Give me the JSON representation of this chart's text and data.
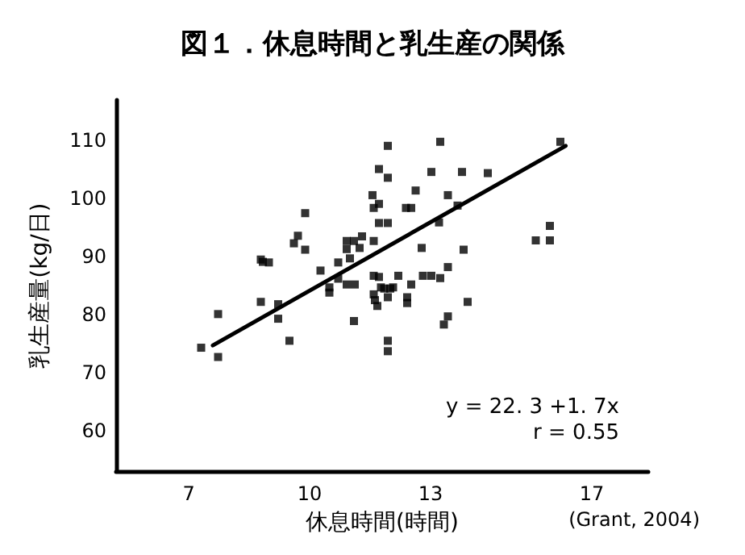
{
  "chart_data": {
    "type": "scatter",
    "title": "図１．休息時間と乳生産の関係",
    "xlabel": "休息時間(時間)",
    "ylabel": "乳生産量(kg/日)",
    "annotations": [
      "y = 22. 3 +1. 7x",
      "r = 0.55",
      "(Grant, 2004)"
    ],
    "xlim": [
      5.2,
      18.4
    ],
    "ylim": [
      53,
      117
    ],
    "xticks": [
      7,
      10,
      13,
      17
    ],
    "yticks": [
      60,
      70,
      80,
      90,
      100,
      110
    ],
    "grid": false,
    "marker": "square",
    "series": [
      {
        "color": "#000000",
        "x": [
          7.31,
          7.73,
          7.73,
          8.79,
          8.84,
          8.99,
          8.79,
          9.22,
          9.22,
          9.5,
          9.61,
          9.71,
          9.89,
          9.89,
          10.27,
          10.49,
          10.49,
          10.71,
          10.71,
          10.92,
          10.92,
          10.92,
          11.0,
          11.1,
          11.12,
          11.1,
          11.24,
          11.3,
          11.59,
          11.59,
          11.56,
          11.59,
          11.72,
          11.72,
          11.72,
          11.94,
          11.94,
          11.94,
          11.59,
          11.62,
          11.68,
          11.77,
          11.85,
          12.0,
          11.94,
          12.07,
          12.2,
          12.42,
          12.42,
          12.52,
          11.94,
          11.94,
          11.72,
          12.39,
          12.52,
          12.63,
          12.78,
          12.81,
          13.02,
          13.02,
          13.21,
          13.24,
          13.24,
          13.43,
          13.43,
          13.33,
          13.43,
          13.67,
          13.78,
          13.82,
          13.92,
          14.42,
          15.61,
          15.96,
          15.96,
          16.22
        ],
        "values": [
          74.3,
          80.1,
          72.7,
          89.5,
          89.1,
          89.0,
          82.2,
          81.8,
          79.3,
          75.5,
          92.3,
          93.6,
          97.5,
          91.2,
          87.6,
          84.7,
          83.8,
          89.0,
          86.2,
          92.7,
          91.3,
          85.2,
          89.7,
          92.7,
          85.2,
          78.9,
          91.5,
          93.5,
          92.7,
          86.7,
          100.6,
          98.4,
          99.1,
          95.8,
          105.1,
          95.8,
          103.6,
          109.1,
          83.5,
          82.5,
          81.5,
          84.7,
          84.5,
          84.5,
          83.0,
          84.7,
          86.7,
          83.0,
          82.0,
          85.2,
          75.5,
          73.7,
          86.5,
          98.4,
          98.4,
          101.4,
          91.5,
          86.7,
          104.6,
          86.7,
          95.9,
          109.8,
          86.3,
          100.6,
          88.2,
          78.3,
          79.7,
          98.8,
          104.6,
          91.2,
          82.2,
          104.4,
          92.8,
          95.3,
          92.8,
          109.8
        ]
      },
      {
        "type": "line",
        "color": "#000000",
        "marker": "none",
        "line_style": "solid",
        "x": [
          7.6,
          16.35
        ],
        "values": [
          74.7,
          109.1
        ]
      }
    ]
  }
}
